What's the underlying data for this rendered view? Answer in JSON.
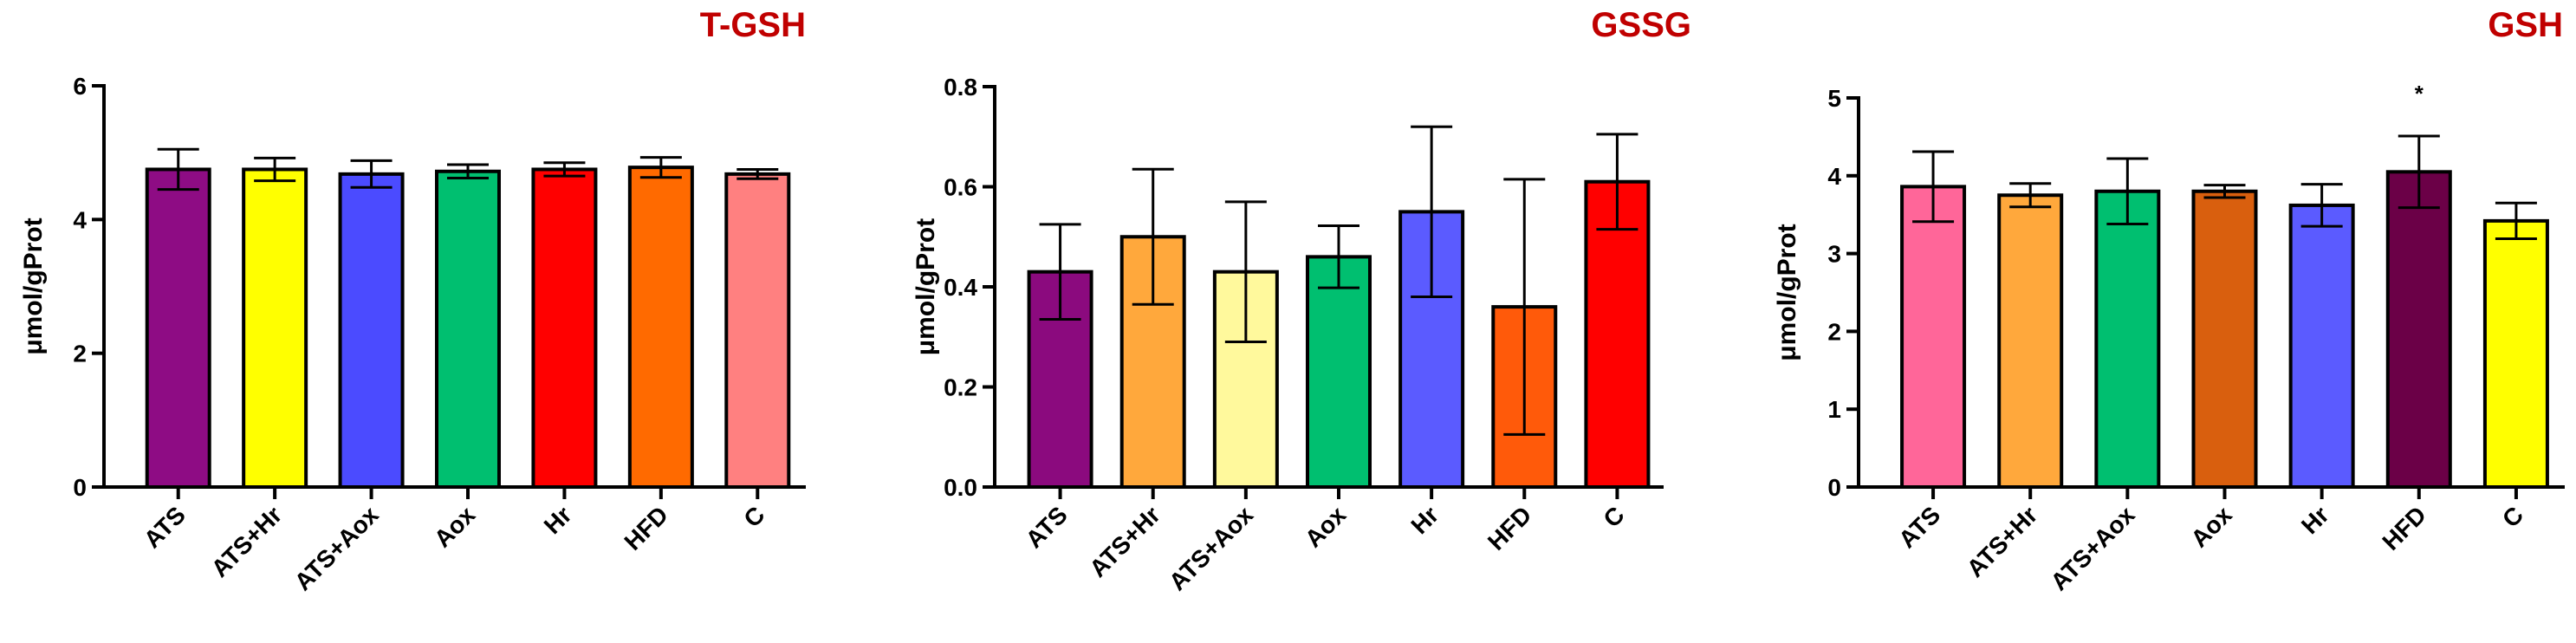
{
  "chart_data": [
    {
      "type": "bar",
      "title": "T-GSH",
      "ylabel": "μmol/gProt",
      "xlabel": "",
      "ylim": [
        0,
        6
      ],
      "yticks": [
        0,
        2,
        4,
        6
      ],
      "categories": [
        "ATS",
        "ATS+Hr",
        "ATS+Aox",
        "Aox",
        "Hr",
        "HFD",
        "C"
      ],
      "values": [
        4.75,
        4.75,
        4.68,
        4.72,
        4.75,
        4.78,
        4.68
      ],
      "errors": [
        0.3,
        0.17,
        0.2,
        0.1,
        0.1,
        0.15,
        0.07
      ],
      "colors": [
        "#8E0C84",
        "#FFFF00",
        "#4B4BFF",
        "#00BF70",
        "#FF0000",
        "#FF6A00",
        "#FF8080"
      ],
      "significance": [
        "",
        "",
        "",
        "",
        "",
        "",
        ""
      ]
    },
    {
      "type": "bar",
      "title": "GSSG",
      "ylabel": "μmol/gProt",
      "xlabel": "",
      "ylim": [
        0,
        0.8
      ],
      "yticks": [
        0.0,
        0.2,
        0.4,
        0.6,
        0.8
      ],
      "tick_labels": [
        "0.0",
        "0.2",
        "0.4",
        "0.6",
        "0.8"
      ],
      "categories": [
        "ATS",
        "ATS+Hr",
        "ATS+Aox",
        "Aox",
        "Hr",
        "HFD",
        "C"
      ],
      "values": [
        0.43,
        0.5,
        0.43,
        0.46,
        0.55,
        0.36,
        0.61
      ],
      "errors": [
        0.095,
        0.135,
        0.14,
        0.062,
        0.17,
        0.255,
        0.095
      ],
      "colors": [
        "#8B0A7E",
        "#FFA83C",
        "#FFF99C",
        "#00BF70",
        "#5B5BFF",
        "#FF5A0A",
        "#FF0000"
      ],
      "significance": [
        "",
        "",
        "",
        "",
        "",
        "",
        ""
      ]
    },
    {
      "type": "bar",
      "title": "GSH",
      "ylabel": "μmol/gProt",
      "xlabel": "",
      "ylim": [
        0,
        5
      ],
      "yticks": [
        0,
        1,
        2,
        3,
        4,
        5
      ],
      "categories": [
        "ATS",
        "ATS+Hr",
        "ATS+Aox",
        "Aox",
        "Hr",
        "HFD",
        "C"
      ],
      "values": [
        3.86,
        3.75,
        3.8,
        3.8,
        3.62,
        4.05,
        3.42
      ],
      "errors": [
        0.45,
        0.15,
        0.42,
        0.08,
        0.27,
        0.46,
        0.23
      ],
      "colors": [
        "#FF6699",
        "#FFA83C",
        "#00BF70",
        "#D95F0E",
        "#5B5BFF",
        "#6B0047",
        "#FFFF00"
      ],
      "significance": [
        "",
        "",
        "",
        "",
        "",
        "*",
        ""
      ]
    }
  ],
  "colors": {
    "title": "#C00000",
    "axis": "#000000"
  }
}
